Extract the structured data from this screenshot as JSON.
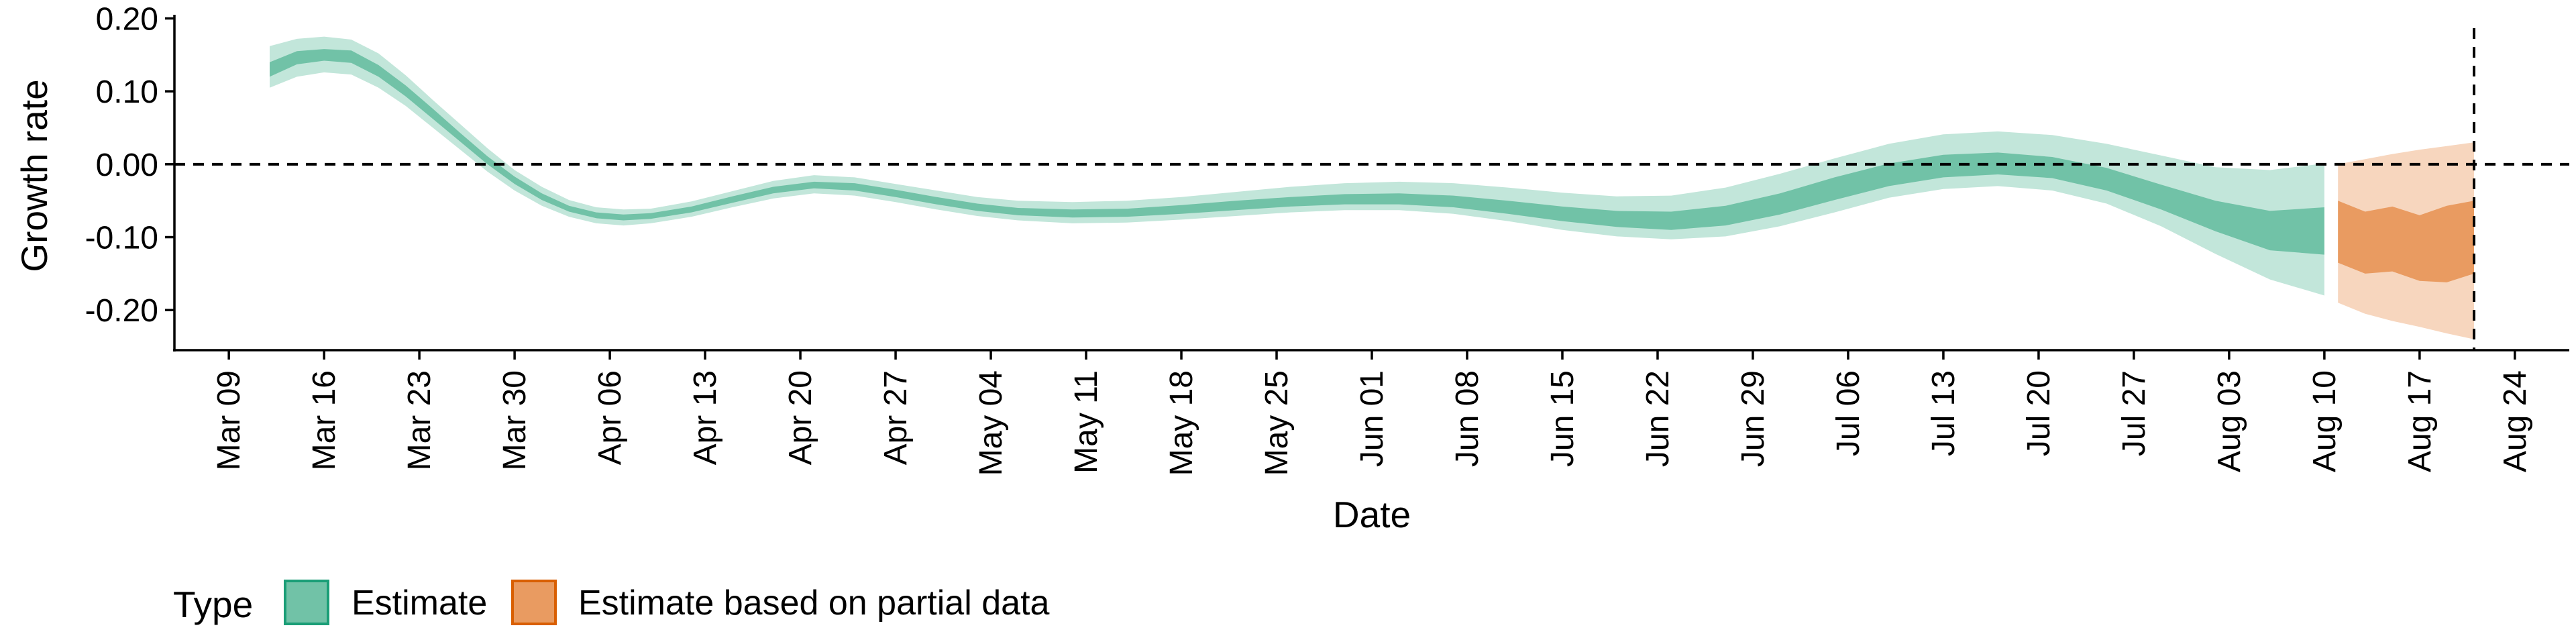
{
  "chart_data": {
    "type": "area",
    "xlabel": "Date",
    "ylabel": "Growth rate",
    "x_domain": [
      "2020-03-05",
      "2020-08-28"
    ],
    "y_domain": [
      -0.255,
      0.205
    ],
    "y_ticks": [
      0.2,
      0.1,
      0.0,
      -0.1,
      -0.2
    ],
    "y_tick_labels": [
      "0.20",
      "0.10",
      "0.00",
      "-0.10",
      "-0.20"
    ],
    "x_ticks": [
      "2020-03-09",
      "2020-03-16",
      "2020-03-23",
      "2020-03-30",
      "2020-04-06",
      "2020-04-13",
      "2020-04-20",
      "2020-04-27",
      "2020-05-04",
      "2020-05-11",
      "2020-05-18",
      "2020-05-25",
      "2020-06-01",
      "2020-06-08",
      "2020-06-15",
      "2020-06-22",
      "2020-06-29",
      "2020-07-06",
      "2020-07-13",
      "2020-07-20",
      "2020-07-27",
      "2020-08-03",
      "2020-08-10",
      "2020-08-17",
      "2020-08-24"
    ],
    "x_tick_labels": [
      "Mar 09",
      "Mar 16",
      "Mar 23",
      "Mar 30",
      "Apr 06",
      "Apr 13",
      "Apr 20",
      "Apr 27",
      "May 04",
      "May 11",
      "May 18",
      "May 25",
      "Jun 01",
      "Jun 08",
      "Jun 15",
      "Jun 22",
      "Jun 29",
      "Jul 06",
      "Jul 13",
      "Jul 20",
      "Jul 27",
      "Aug 03",
      "Aug 10",
      "Aug 17",
      "Aug 24"
    ],
    "hline_y": 0,
    "vline_x": "2020-08-21",
    "legend": {
      "title": "Type",
      "position": "bottom-left",
      "items": [
        {
          "label": "Estimate",
          "fill": "#71c2a7",
          "border": "#1b9e77"
        },
        {
          "label": "Estimate based on partial data",
          "fill": "#e99b61",
          "border": "#d95f02"
        }
      ]
    },
    "series": [
      {
        "name": "Estimate",
        "inner_color": "#71c2a7",
        "outer_color": "#c2e6da",
        "points": [
          {
            "x": "2020-03-12",
            "lo90": 0.105,
            "lo50": 0.12,
            "hi50": 0.14,
            "hi90": 0.162
          },
          {
            "x": "2020-03-14",
            "lo90": 0.12,
            "lo50": 0.137,
            "hi50": 0.155,
            "hi90": 0.172
          },
          {
            "x": "2020-03-16",
            "lo90": 0.126,
            "lo50": 0.142,
            "hi50": 0.158,
            "hi90": 0.175
          },
          {
            "x": "2020-03-18",
            "lo90": 0.123,
            "lo50": 0.139,
            "hi50": 0.156,
            "hi90": 0.171
          },
          {
            "x": "2020-03-20",
            "lo90": 0.105,
            "lo50": 0.12,
            "hi50": 0.136,
            "hi90": 0.152
          },
          {
            "x": "2020-03-22",
            "lo90": 0.08,
            "lo50": 0.093,
            "hi50": 0.108,
            "hi90": 0.122
          },
          {
            "x": "2020-03-24",
            "lo90": 0.05,
            "lo50": 0.062,
            "hi50": 0.076,
            "hi90": 0.088
          },
          {
            "x": "2020-03-26",
            "lo90": 0.02,
            "lo50": 0.031,
            "hi50": 0.043,
            "hi90": 0.055
          },
          {
            "x": "2020-03-28",
            "lo90": -0.01,
            "lo50": 0.0,
            "hi50": 0.011,
            "hi90": 0.022
          },
          {
            "x": "2020-03-30",
            "lo90": -0.036,
            "lo50": -0.027,
            "hi50": -0.017,
            "hi90": -0.008
          },
          {
            "x": "2020-04-01",
            "lo90": -0.057,
            "lo50": -0.049,
            "hi50": -0.04,
            "hi90": -0.031
          },
          {
            "x": "2020-04-03",
            "lo90": -0.072,
            "lo50": -0.065,
            "hi50": -0.057,
            "hi90": -0.049
          },
          {
            "x": "2020-04-05",
            "lo90": -0.081,
            "lo50": -0.074,
            "hi50": -0.066,
            "hi90": -0.059
          },
          {
            "x": "2020-04-07",
            "lo90": -0.084,
            "lo50": -0.077,
            "hi50": -0.069,
            "hi90": -0.062
          },
          {
            "x": "2020-04-09",
            "lo90": -0.081,
            "lo50": -0.075,
            "hi50": -0.067,
            "hi90": -0.061
          },
          {
            "x": "2020-04-12",
            "lo90": -0.072,
            "lo50": -0.066,
            "hi50": -0.058,
            "hi90": -0.051
          },
          {
            "x": "2020-04-15",
            "lo90": -0.059,
            "lo50": -0.053,
            "hi50": -0.044,
            "hi90": -0.037
          },
          {
            "x": "2020-04-18",
            "lo90": -0.047,
            "lo50": -0.04,
            "hi50": -0.031,
            "hi90": -0.023
          },
          {
            "x": "2020-04-21",
            "lo90": -0.04,
            "lo50": -0.033,
            "hi50": -0.024,
            "hi90": -0.015
          },
          {
            "x": "2020-04-24",
            "lo90": -0.043,
            "lo50": -0.036,
            "hi50": -0.026,
            "hi90": -0.018
          },
          {
            "x": "2020-04-27",
            "lo90": -0.052,
            "lo50": -0.045,
            "hi50": -0.035,
            "hi90": -0.027
          },
          {
            "x": "2020-04-30",
            "lo90": -0.062,
            "lo50": -0.055,
            "hi50": -0.045,
            "hi90": -0.036
          },
          {
            "x": "2020-05-03",
            "lo90": -0.071,
            "lo50": -0.064,
            "hi50": -0.054,
            "hi90": -0.045
          },
          {
            "x": "2020-05-06",
            "lo90": -0.077,
            "lo50": -0.07,
            "hi50": -0.06,
            "hi90": -0.05
          },
          {
            "x": "2020-05-10",
            "lo90": -0.081,
            "lo50": -0.073,
            "hi50": -0.062,
            "hi90": -0.052
          },
          {
            "x": "2020-05-14",
            "lo90": -0.08,
            "lo50": -0.072,
            "hi50": -0.061,
            "hi90": -0.05
          },
          {
            "x": "2020-05-18",
            "lo90": -0.076,
            "lo50": -0.068,
            "hi50": -0.056,
            "hi90": -0.045
          },
          {
            "x": "2020-05-22",
            "lo90": -0.071,
            "lo50": -0.063,
            "hi50": -0.05,
            "hi90": -0.038
          },
          {
            "x": "2020-05-26",
            "lo90": -0.066,
            "lo50": -0.058,
            "hi50": -0.045,
            "hi90": -0.031
          },
          {
            "x": "2020-05-30",
            "lo90": -0.063,
            "lo50": -0.055,
            "hi50": -0.041,
            "hi90": -0.026
          },
          {
            "x": "2020-06-03",
            "lo90": -0.063,
            "lo50": -0.055,
            "hi50": -0.04,
            "hi90": -0.024
          },
          {
            "x": "2020-06-07",
            "lo90": -0.068,
            "lo50": -0.059,
            "hi50": -0.043,
            "hi90": -0.026
          },
          {
            "x": "2020-06-11",
            "lo90": -0.078,
            "lo50": -0.068,
            "hi50": -0.05,
            "hi90": -0.032
          },
          {
            "x": "2020-06-15",
            "lo90": -0.09,
            "lo50": -0.078,
            "hi50": -0.058,
            "hi90": -0.039
          },
          {
            "x": "2020-06-19",
            "lo90": -0.099,
            "lo50": -0.086,
            "hi50": -0.064,
            "hi90": -0.044
          },
          {
            "x": "2020-06-23",
            "lo90": -0.103,
            "lo50": -0.09,
            "hi50": -0.065,
            "hi90": -0.043
          },
          {
            "x": "2020-06-27",
            "lo90": -0.099,
            "lo50": -0.084,
            "hi50": -0.057,
            "hi90": -0.032
          },
          {
            "x": "2020-07-01",
            "lo90": -0.085,
            "lo50": -0.069,
            "hi50": -0.04,
            "hi90": -0.013
          },
          {
            "x": "2020-07-05",
            "lo90": -0.066,
            "lo50": -0.049,
            "hi50": -0.018,
            "hi90": 0.008
          },
          {
            "x": "2020-07-09",
            "lo90": -0.046,
            "lo50": -0.03,
            "hi50": 0.001,
            "hi90": 0.028
          },
          {
            "x": "2020-07-13",
            "lo90": -0.034,
            "lo50": -0.018,
            "hi50": 0.013,
            "hi90": 0.041
          },
          {
            "x": "2020-07-17",
            "lo90": -0.03,
            "lo50": -0.014,
            "hi50": 0.016,
            "hi90": 0.045
          },
          {
            "x": "2020-07-21",
            "lo90": -0.036,
            "lo50": -0.019,
            "hi50": 0.01,
            "hi90": 0.04
          },
          {
            "x": "2020-07-25",
            "lo90": -0.054,
            "lo50": -0.036,
            "hi50": -0.005,
            "hi90": 0.028
          },
          {
            "x": "2020-07-29",
            "lo90": -0.085,
            "lo50": -0.062,
            "hi50": -0.028,
            "hi90": 0.012
          },
          {
            "x": "2020-08-02",
            "lo90": -0.123,
            "lo50": -0.092,
            "hi50": -0.05,
            "hi90": -0.004
          },
          {
            "x": "2020-08-06",
            "lo90": -0.158,
            "lo50": -0.118,
            "hi50": -0.064,
            "hi90": -0.008
          },
          {
            "x": "2020-08-10",
            "lo90": -0.18,
            "lo50": -0.124,
            "hi50": -0.059,
            "hi90": 0.001
          }
        ]
      },
      {
        "name": "Estimate based on partial data",
        "inner_color": "#e99b61",
        "outer_color": "#f7d6be",
        "points": [
          {
            "x": "2020-08-11",
            "lo90": -0.19,
            "lo50": -0.135,
            "hi50": -0.05,
            "hi90": 0.0
          },
          {
            "x": "2020-08-13",
            "lo90": -0.205,
            "lo50": -0.15,
            "hi50": -0.065,
            "hi90": 0.007
          },
          {
            "x": "2020-08-15",
            "lo90": -0.215,
            "lo50": -0.147,
            "hi50": -0.058,
            "hi90": 0.014
          },
          {
            "x": "2020-08-17",
            "lo90": -0.223,
            "lo50": -0.16,
            "hi50": -0.07,
            "hi90": 0.02
          },
          {
            "x": "2020-08-19",
            "lo90": -0.232,
            "lo50": -0.162,
            "hi50": -0.057,
            "hi90": 0.025
          },
          {
            "x": "2020-08-21",
            "lo90": -0.24,
            "lo50": -0.15,
            "hi50": -0.05,
            "hi90": 0.03
          }
        ]
      }
    ]
  }
}
